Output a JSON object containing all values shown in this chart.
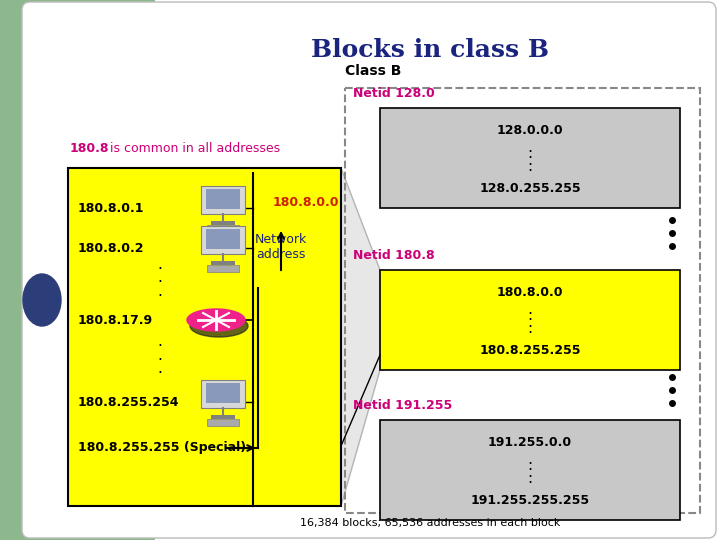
{
  "title": "Blocks in class B",
  "title_color": "#1a237e",
  "bg_green": "#8db88d",
  "bg_white": "#ffffff",
  "yellow_color": "#ffff00",
  "gray_block_color": "#c8c8c8",
  "magenta_color": "#cc0077",
  "dark_navy": "#1a237e",
  "black": "#000000",
  "red_text": "#cc2200",
  "left_label": "180.8 is common in all addresses",
  "left_label_bold_part": "180.8",
  "network_addr": "180.8.0.0",
  "network_label": "Network\naddress",
  "entries": [
    {
      "text": "180.8.0.1",
      "type": "computer"
    },
    {
      "text": "180.8.0.2",
      "type": "computer"
    },
    {
      "text": "...",
      "type": "dots"
    },
    {
      "text": "180.8.17.9",
      "type": "router"
    },
    {
      "text": "...",
      "type": "dots"
    },
    {
      "text": "180.8.255.254",
      "type": "computer"
    },
    {
      "text": "180.8.255.255 (Special)",
      "type": "special"
    }
  ],
  "class_b_label": "Class B",
  "blocks": [
    {
      "netid_label": "Netid 128.0",
      "top_addr": "128.0.0.0",
      "bot_addr": "128.0.255.255",
      "color": "#c8c8c8"
    },
    {
      "netid_label": "Netid 180.8",
      "top_addr": "180.8.0.0",
      "bot_addr": "180.8.255.255",
      "color": "#ffff00"
    },
    {
      "netid_label": "Netid 191.255",
      "top_addr": "191.255.0.0",
      "bot_addr": "191.255.255.255",
      "color": "#c8c8c8"
    }
  ],
  "footer": "16,384 blocks; 65,536 addresses in each block"
}
